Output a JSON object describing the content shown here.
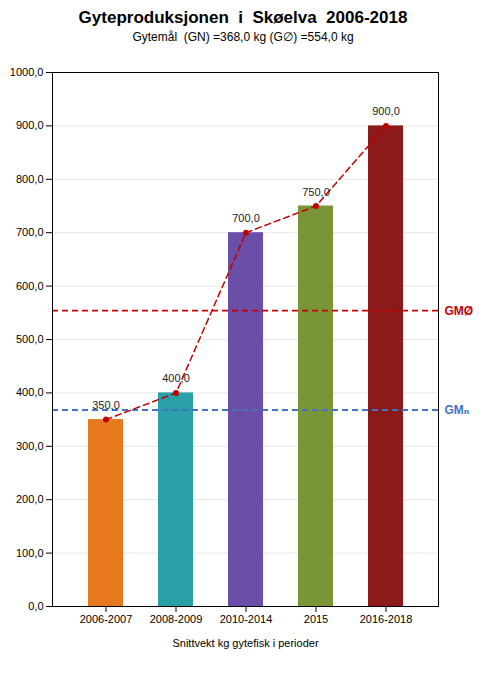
{
  "chart_data": {
    "type": "bar",
    "title": "Gyteproduksjonen  i  Skøelva  2006-2018",
    "subtitle": "Gytemål  (GN) =368,0 kg (G∅) =554,0 kg",
    "xlabel": "Snittvekt kg gytefisk i perioder",
    "categories": [
      "2006-2007",
      "2008-2009",
      "2010-2014",
      "2015",
      "2016-2018"
    ],
    "values": [
      350.0,
      400.0,
      700.0,
      750.0,
      900.0
    ],
    "value_labels": [
      "350,0",
      "400,0",
      "700,0",
      "750,0",
      "900,0"
    ],
    "data_labels": true,
    "colors": [
      "#E8781E",
      "#2AA0A8",
      "#6A4EA8",
      "#7A9438",
      "#8B1A18"
    ],
    "lines": [
      {
        "type": "line",
        "color": "#C00000",
        "line_style": "dashed",
        "marker": "circle",
        "values": [
          350.0,
          400.0,
          700.0,
          750.0,
          900.0
        ]
      }
    ],
    "annotations": [
      {
        "text": "GMØ",
        "y": 554.0,
        "color": "#C00000",
        "line_style": "dashed"
      },
      {
        "text": "GMₙ",
        "y": 368.0,
        "color": "#4472C4",
        "line_style": "dashed"
      }
    ],
    "ylim": [
      0,
      1000
    ],
    "yticks": [
      {
        "value": 0,
        "label": "0,0"
      },
      {
        "value": 100,
        "label": "100,0"
      },
      {
        "value": 200,
        "label": "200,0"
      },
      {
        "value": 300,
        "label": "300,0"
      },
      {
        "value": 400,
        "label": "400,0"
      },
      {
        "value": 500,
        "label": "500,0"
      },
      {
        "value": 600,
        "label": "600,0"
      },
      {
        "value": 700,
        "label": "700,0"
      },
      {
        "value": 800,
        "label": "800,0"
      },
      {
        "value": 900,
        "label": "900,0"
      },
      {
        "value": 1000,
        "label": "1000,0"
      }
    ],
    "grid": true
  }
}
